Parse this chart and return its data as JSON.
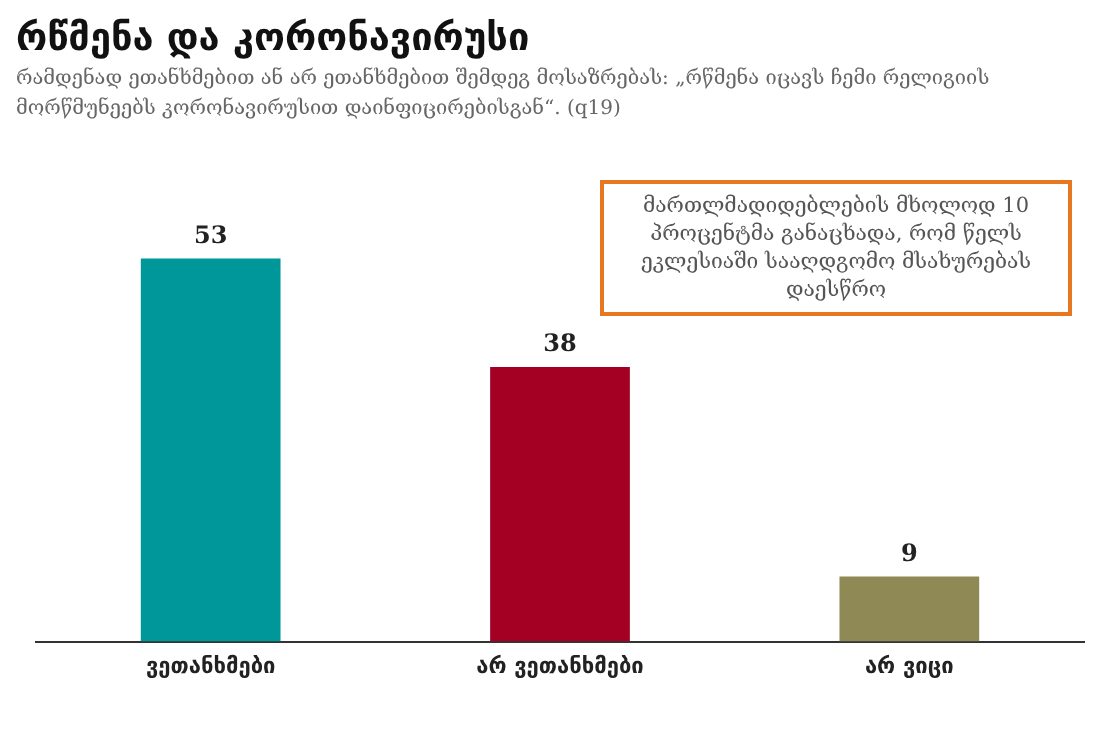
{
  "chart_data": {
    "type": "bar",
    "title": "რწმენა და კორონავირუსი",
    "subtitle": "რამდენად ეთანხმებით ან არ ეთანხმებით შემდეგ მოსაზრებას: „რწმენა იცავს ჩემი რელიგიის მორწმუნეებს კორონავირუსით დაინფიცირებისგან“. (q19)",
    "categories": [
      "ვეთანხმები",
      "არ ვეთანხმები",
      "არ ვიცი"
    ],
    "values": [
      53,
      38,
      9
    ],
    "colors": [
      "#00979a",
      "#a30023",
      "#8f8a55"
    ],
    "data_labels": true,
    "grid": false,
    "legend": false,
    "annotations": [
      "მართლმადიდებლების მხოლოდ 10 პროცენტმა განაცხადა, რომ წელს ეკლესიაში სააღდგომო მსახურებას დაესწრო"
    ]
  }
}
